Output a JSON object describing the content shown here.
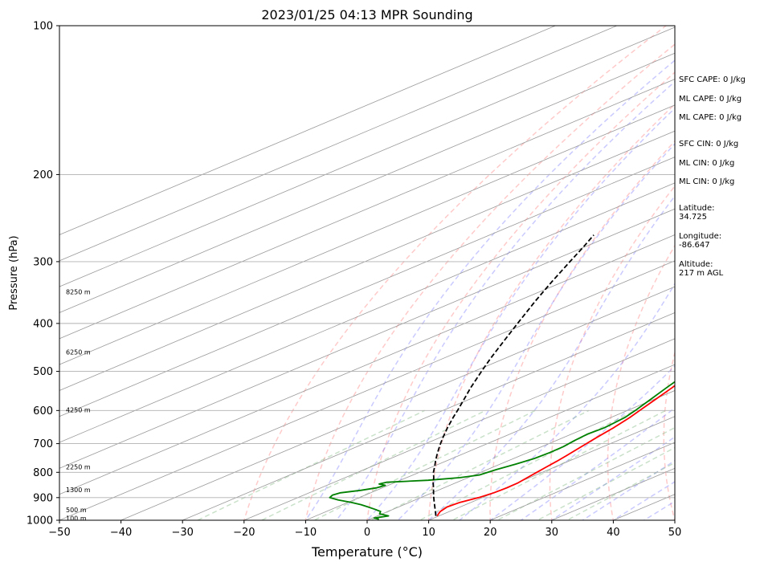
{
  "chart_data": {
    "type": "line",
    "title": "2023/01/25 04:13 MPR Sounding",
    "xlabel": "Temperature (°C)",
    "ylabel": "Pressure (hPa)",
    "xlim": [
      -50,
      50
    ],
    "ylim": [
      1000,
      100
    ],
    "y_scale": "log",
    "skew_t": true,
    "grid": true,
    "x_ticks": [
      "−50",
      "−40",
      "−30",
      "−20",
      "−10",
      "0",
      "10",
      "20",
      "30",
      "40",
      "50"
    ],
    "y_ticks": [
      {
        "p": 100,
        "label": "100"
      },
      {
        "p": 200,
        "label": "200"
      },
      {
        "p": 300,
        "label": "300"
      },
      {
        "p": 400,
        "label": "400"
      },
      {
        "p": 500,
        "label": "500"
      },
      {
        "p": 600,
        "label": "600"
      },
      {
        "p": 700,
        "label": "700"
      },
      {
        "p": 800,
        "label": "800"
      },
      {
        "p": 900,
        "label": "900"
      },
      {
        "p": 1000,
        "label": "1000"
      }
    ],
    "height_labels": [
      {
        "p": 345,
        "label": "8250 m"
      },
      {
        "p": 457,
        "label": "6250 m"
      },
      {
        "p": 598,
        "label": "4250 m"
      },
      {
        "p": 780,
        "label": "2250 m"
      },
      {
        "p": 868,
        "label": "1300 m"
      },
      {
        "p": 952,
        "label": "500 m"
      },
      {
        "p": 990,
        "label": "100 m"
      }
    ],
    "series": [
      {
        "color": "#ff0000",
        "points": [
          [
            980,
            9.7
          ],
          [
            960,
            8.5
          ],
          [
            940,
            7.9
          ],
          [
            920,
            8.2
          ],
          [
            900,
            9.4
          ],
          [
            880,
            10.0
          ],
          [
            860,
            10.2
          ],
          [
            840,
            10.1
          ],
          [
            820,
            9.6
          ],
          [
            800,
            9.1
          ],
          [
            780,
            8.6
          ],
          [
            760,
            8.1
          ],
          [
            740,
            7.5
          ],
          [
            720,
            6.8
          ],
          [
            700,
            6.1
          ],
          [
            680,
            5.4
          ],
          [
            650,
            4.4
          ],
          [
            620,
            3.1
          ],
          [
            600,
            2.0
          ],
          [
            570,
            0.3
          ],
          [
            540,
            -1.5
          ],
          [
            500,
            -4.2
          ],
          [
            470,
            -6.5
          ],
          [
            440,
            -9.1
          ],
          [
            420,
            -11.0
          ],
          [
            400,
            -13.1
          ],
          [
            380,
            -15.2
          ],
          [
            360,
            -17.5
          ],
          [
            340,
            -20.0
          ],
          [
            320,
            -22.6
          ],
          [
            300,
            -25.4
          ],
          [
            290,
            -26.9
          ],
          [
            280,
            -28.4
          ],
          [
            270,
            -30.1
          ],
          [
            265,
            -31.0
          ]
        ]
      },
      {
        "color": "#008000",
        "points": [
          [
            995,
            1.5
          ],
          [
            990,
            0.3
          ],
          [
            980,
            1.8
          ],
          [
            970,
            -0.5
          ],
          [
            960,
            -1.2
          ],
          [
            950,
            -3.0
          ],
          [
            940,
            -5.0
          ],
          [
            930,
            -7.0
          ],
          [
            920,
            -9.5
          ],
          [
            910,
            -12.5
          ],
          [
            900,
            -14.8
          ],
          [
            890,
            -15.3
          ],
          [
            880,
            -14.9
          ],
          [
            870,
            -12.5
          ],
          [
            860,
            -11.0
          ],
          [
            850,
            -10.5
          ],
          [
            845,
            -12.0
          ],
          [
            838,
            -11.5
          ],
          [
            830,
            -5.5
          ],
          [
            820,
            -1.3
          ],
          [
            810,
            0.8
          ],
          [
            790,
            1.5
          ],
          [
            770,
            2.5
          ],
          [
            750,
            3.4
          ],
          [
            730,
            3.6
          ],
          [
            710,
            3.5
          ],
          [
            690,
            3.0
          ],
          [
            670,
            2.6
          ],
          [
            650,
            2.9
          ],
          [
            620,
            2.3
          ],
          [
            600,
            1.3
          ],
          [
            570,
            -0.5
          ],
          [
            540,
            -2.4
          ],
          [
            500,
            -5.0
          ],
          [
            470,
            -7.3
          ],
          [
            440,
            -10.0
          ],
          [
            420,
            -12.0
          ],
          [
            400,
            -14.2
          ],
          [
            385,
            -16.4
          ],
          [
            375,
            -17.4
          ],
          [
            360,
            -18.0
          ],
          [
            345,
            -19.3
          ],
          [
            330,
            -21.0
          ],
          [
            320,
            -22.6
          ],
          [
            310,
            -24.6
          ],
          [
            300,
            -27.0
          ],
          [
            290,
            -29.0
          ],
          [
            280,
            -31.0
          ],
          [
            272,
            -32.1
          ],
          [
            265,
            -32.1
          ]
        ]
      },
      {
        "color": "#000000",
        "dashed": true,
        "points": [
          [
            980,
            9.5
          ],
          [
            950,
            6.8
          ],
          [
            920,
            4.0
          ],
          [
            900,
            2.1
          ],
          [
            880,
            0.2
          ],
          [
            860,
            -1.7
          ],
          [
            840,
            -3.7
          ],
          [
            820,
            -5.6
          ],
          [
            800,
            -7.7
          ],
          [
            780,
            -9.6
          ],
          [
            760,
            -11.6
          ],
          [
            740,
            -13.6
          ],
          [
            720,
            -15.6
          ],
          [
            700,
            -17.6
          ],
          [
            680,
            -19.6
          ],
          [
            650,
            -22.6
          ],
          [
            620,
            -25.6
          ],
          [
            600,
            -27.6
          ],
          [
            570,
            -30.8
          ],
          [
            540,
            -34.2
          ],
          [
            500,
            -38.8
          ],
          [
            470,
            -42.4
          ],
          [
            440,
            -46.1
          ],
          [
            400,
            -51.4
          ],
          [
            360,
            -57.2
          ],
          [
            330,
            -61.8
          ],
          [
            300,
            -66.7
          ],
          [
            280,
            -70.2
          ],
          [
            265,
            -73.1
          ]
        ]
      }
    ]
  },
  "stats": [
    "SFC CAPE: 0 J/kg",
    "ML CAPE: 0 J/kg",
    "ML CAPE: 0 J/kg",
    "SFC CIN: 0 J/kg",
    "ML CIN: 0 J/kg",
    "ML CIN: 0 J/kg",
    "Latitude:",
    "34.725",
    "Longitude:",
    "-86.647",
    "Altitude:",
    "217 m AGL"
  ],
  "colors": {
    "dry_adiabat": "#ff6666",
    "moist_adiabat": "#6666ff",
    "mixing_ratio": "#66aa66",
    "isotherm": "#999999"
  }
}
